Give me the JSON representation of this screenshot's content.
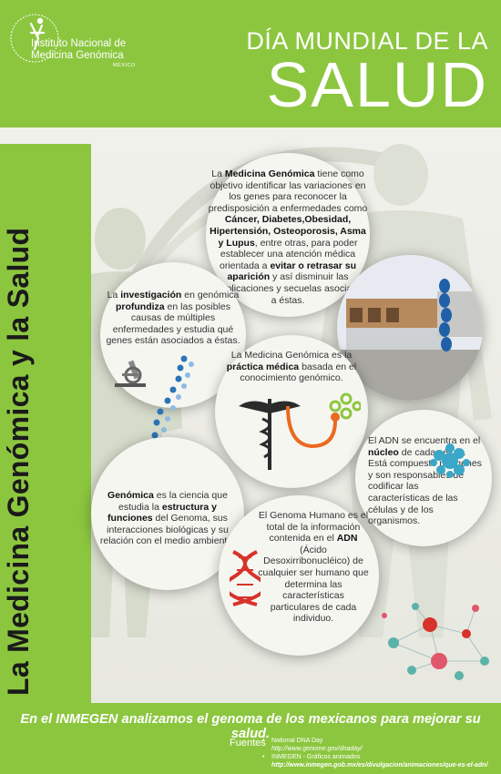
{
  "header": {
    "logo_line1": "Instituto Nacional de",
    "logo_line2": "Medicina Genómica",
    "logo_country": "MÉXICO",
    "title_line1": "DÍA MUNDIAL DE LA",
    "title_line2": "SALUD"
  },
  "side_title": "La Medicina Genómica y la Salud",
  "circles": {
    "top": {
      "t1": "La ",
      "b1": "Medicina Genómica",
      "t2": " tiene como objetivo identificar las variaciones en los genes para reconocer la predisposición a enfermedades como ",
      "b2": "Cáncer, Diabetes,Obesidad, Hipertensión, Osteoporosis, Asma y Lupus",
      "t3": ", entre otras, para poder establecer una atención médica orientada a ",
      "b3": "evitar o retrasar su aparición",
      "t4": " y así disminuir las complicaciones y secuelas asociadas a éstas."
    },
    "investigacion": {
      "t1": "La ",
      "b1": "investigación",
      "t2": " en genómica ",
      "b2": "profundiza",
      "t3": " en las posibles causas de múltiples enfermedades y estudia qué genes están asociados a éstas."
    },
    "practica": {
      "t1": "La Medicina Genómica es la ",
      "b1": "práctica médica",
      "t2": " basada en el conocimiento genómico."
    },
    "genomica": {
      "b1": "Genómica",
      "t1": " es la ciencia que estudia la ",
      "b2": "estructura y funciones",
      "t2": " del Genoma, sus interacciones biológicas y su relación con el medio ambiente."
    },
    "genoma": {
      "t1": "El Genoma Humano es el total de la información contenida en el ",
      "b1": "ADN",
      "t2": " (Ácido Desoxirribonucléico) de cualquier ser humano que determina las características particulares de cada individuo."
    },
    "adn": {
      "t1": "El ADN se encuentra en el ",
      "b1": "núcleo",
      "t2": " de cada célula. Está compuesto por genes y son responsables de codificar las características de las células y de los organismos."
    }
  },
  "footer": {
    "slogan": "En el INMEGEN analizamos el genoma de los mexicanos para mejorar su salud.",
    "sources_label": "Fuentes",
    "sources": [
      {
        "title": "National DNA Day",
        "url": "http://www.genome.gov/dnaday/"
      },
      {
        "title": "INMEGEN - Gráficos animados",
        "url": "http://www.inmegen.gob.mx/es/divulgacion/animaciones/que-es-el-adn/"
      }
    ]
  },
  "colors": {
    "brand_green": "#8cc63f",
    "dna_blue": "#2a74b8",
    "dna_red": "#d7332b",
    "node_teal": "#5bb3a8"
  }
}
